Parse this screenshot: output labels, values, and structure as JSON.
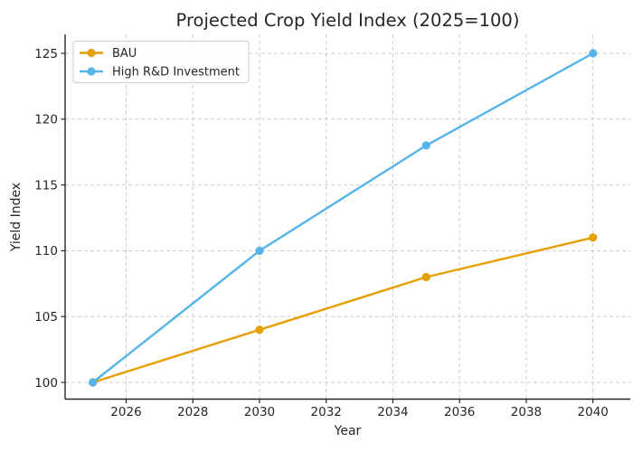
{
  "page": {
    "background": "#ffffff"
  },
  "chart_data": {
    "type": "line",
    "title": "Projected Crop Yield Index (2025=100)",
    "xlabel": "Year",
    "ylabel": "Yield Index",
    "x": [
      2025,
      2030,
      2035,
      2040
    ],
    "series": [
      {
        "name": "BAU",
        "values": [
          100,
          104,
          108,
          111
        ],
        "color": "#E69F00"
      },
      {
        "name": "High R&D Investment",
        "values": [
          100,
          110,
          118,
          125
        ],
        "color": "#56B4E9"
      }
    ],
    "xticks": [
      2026,
      2028,
      2030,
      2032,
      2034,
      2036,
      2038,
      2040
    ],
    "yticks": [
      100,
      105,
      110,
      115,
      120,
      125
    ],
    "xlim": [
      2024.17,
      2041.12
    ],
    "ylim": [
      98.73,
      126.44
    ],
    "grid": true,
    "grid_style": "dashed",
    "legend_position": "upper-left",
    "marker": "circle",
    "colors": {
      "grid": "#cccccc",
      "spine": "#262626",
      "tick": "#262626",
      "text": "#262626",
      "legend_border": "#cccccc",
      "legend_background": "#ffffff"
    }
  }
}
